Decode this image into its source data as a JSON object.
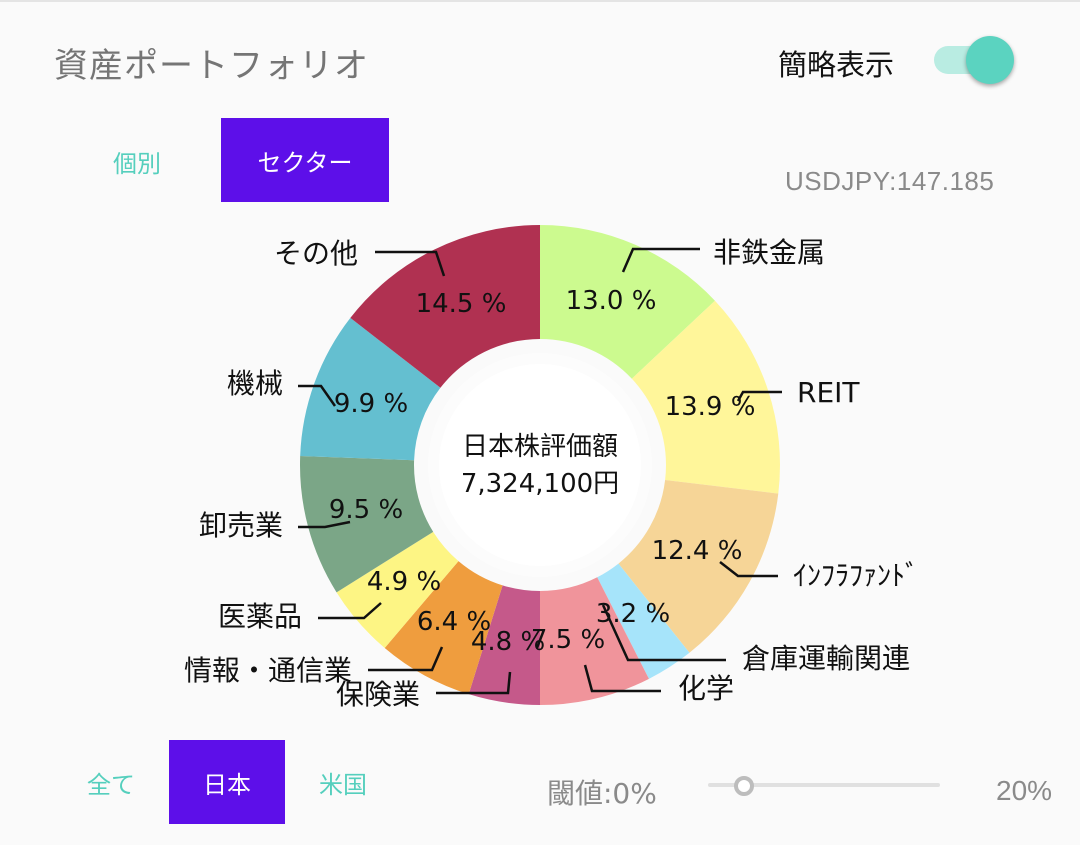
{
  "header": {
    "title": "資産ポートフォリオ",
    "toggle_label": "簡略表示",
    "toggle_on": true
  },
  "view_tabs": [
    {
      "label": "個別",
      "selected": false
    },
    {
      "label": "セクター",
      "selected": true
    }
  ],
  "exchange_rate": "USDJPY:147.185",
  "center_label": {
    "line1": "日本株評価額",
    "line2": "7,324,100円"
  },
  "chart_data": {
    "type": "pie",
    "variant": "donut",
    "start_angle_deg": 0,
    "direction": "clockwise",
    "slices": [
      {
        "label": "非鉄金属",
        "value": 13.0,
        "value_label": "13.0 %",
        "color": "#ccfa8f"
      },
      {
        "label": "REIT",
        "value": 13.9,
        "value_label": "13.9 %",
        "color": "#fff69a"
      },
      {
        "label": "ｲﾝﾌﾗﾌｧﾝﾄﾞ",
        "value": 12.4,
        "value_label": "12.4 %",
        "color": "#f6d597"
      },
      {
        "label": "倉庫運輸関連",
        "value": 3.2,
        "value_label": "3.2 %",
        "color": "#a6e4fa"
      },
      {
        "label": "化学",
        "value": 7.5,
        "value_label": "7.5 %",
        "color": "#f0949b"
      },
      {
        "label": "保険業",
        "value": 4.8,
        "value_label": "4.8 %",
        "color": "#c5598a"
      },
      {
        "label": "情報・通信業",
        "value": 6.4,
        "value_label": "6.4 %",
        "color": "#ef9d3e"
      },
      {
        "label": "医薬品",
        "value": 4.9,
        "value_label": "4.9 %",
        "color": "#fdf584"
      },
      {
        "label": "卸売業",
        "value": 9.5,
        "value_label": "9.5 %",
        "color": "#7ba687"
      },
      {
        "label": "機械",
        "value": 9.9,
        "value_label": "9.9 %",
        "color": "#64bfd0"
      },
      {
        "label": "その他",
        "value": 14.5,
        "value_label": "14.5 %",
        "color": "#b03151"
      }
    ]
  },
  "market_tabs": [
    {
      "label": "全て",
      "selected": false
    },
    {
      "label": "日本",
      "selected": true
    },
    {
      "label": "米国",
      "selected": false
    }
  ],
  "threshold": {
    "label": "閾値:0%",
    "value_percent": 0,
    "max_label": "20%"
  },
  "colors": {
    "accent": "#5d0fe9",
    "teal": "#55cfbd"
  }
}
